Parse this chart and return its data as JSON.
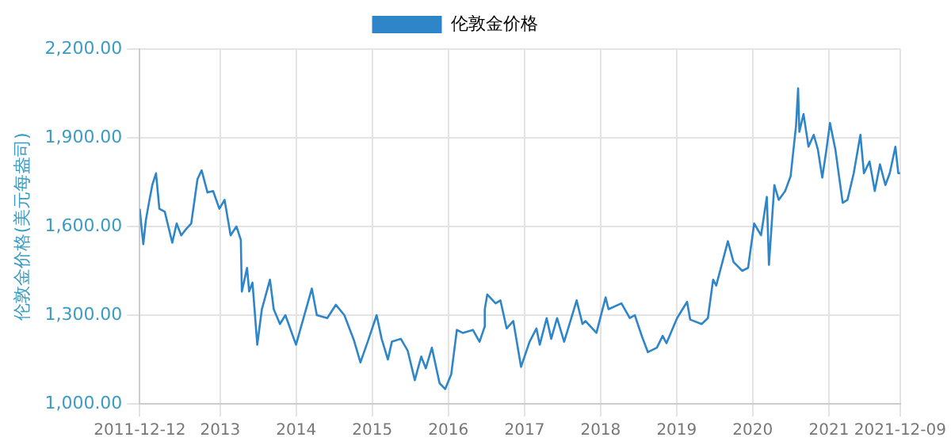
{
  "chart_data": {
    "type": "line",
    "ylabel": "伦敦金价格(美元每盎司)",
    "legend": "top",
    "grid": true,
    "marker": "none",
    "xlim": [
      "2011-12-12",
      "2021-12-09"
    ],
    "xticks": [
      {
        "value": "2011-12-12",
        "label": "2011-12-12"
      },
      {
        "value": "2013-01-01",
        "label": "2013"
      },
      {
        "value": "2014-01-01",
        "label": "2014"
      },
      {
        "value": "2015-01-01",
        "label": "2015"
      },
      {
        "value": "2016-01-01",
        "label": "2016"
      },
      {
        "value": "2017-01-01",
        "label": "2017"
      },
      {
        "value": "2018-01-01",
        "label": "2018"
      },
      {
        "value": "2019-01-01",
        "label": "2019"
      },
      {
        "value": "2020-01-01",
        "label": "2020"
      },
      {
        "value": "2021-01-01",
        "label": "2021"
      },
      {
        "value": "2021-12-09",
        "label": "2021-12-09"
      }
    ],
    "ylim": [
      1000,
      2200
    ],
    "yticks": [
      {
        "value": 1000,
        "label": "1,000.00"
      },
      {
        "value": 1300,
        "label": "1,300.00"
      },
      {
        "value": 1600,
        "label": "1,600.00"
      },
      {
        "value": 1900,
        "label": "1,900.00"
      },
      {
        "value": 2200,
        "label": "2,200.00"
      }
    ],
    "x": [
      "2011-12-12",
      "2011-12-20",
      "2011-12-29",
      "2012-01-10",
      "2012-01-25",
      "2012-02-10",
      "2012-02-28",
      "2012-03-15",
      "2012-04-10",
      "2012-05-16",
      "2012-06-06",
      "2012-06-28",
      "2012-07-20",
      "2012-08-15",
      "2012-09-14",
      "2012-10-04",
      "2012-11-01",
      "2012-11-28",
      "2012-12-28",
      "2013-01-22",
      "2013-02-20",
      "2013-03-20",
      "2013-04-10",
      "2013-04-15",
      "2013-05-10",
      "2013-05-20",
      "2013-06-05",
      "2013-06-28",
      "2013-07-20",
      "2013-08-28",
      "2013-09-15",
      "2013-10-15",
      "2013-11-10",
      "2013-12-31",
      "2014-01-20",
      "2014-03-17",
      "2014-04-10",
      "2014-05-30",
      "2014-07-10",
      "2014-08-20",
      "2014-10-05",
      "2014-11-05",
      "2014-12-10",
      "2015-01-22",
      "2015-02-15",
      "2015-03-17",
      "2015-04-05",
      "2015-05-18",
      "2015-06-20",
      "2015-07-24",
      "2015-08-24",
      "2015-09-15",
      "2015-10-14",
      "2015-11-20",
      "2015-12-17",
      "2016-01-15",
      "2016-02-11",
      "2016-03-10",
      "2016-04-28",
      "2016-05-30",
      "2016-06-23",
      "2016-06-24",
      "2016-07-06",
      "2016-08-15",
      "2016-09-07",
      "2016-10-07",
      "2016-11-08",
      "2016-12-15",
      "2017-01-25",
      "2017-02-27",
      "2017-03-15",
      "2017-04-17",
      "2017-05-09",
      "2017-06-06",
      "2017-07-10",
      "2017-09-08",
      "2017-10-06",
      "2017-10-20",
      "2017-12-12",
      "2018-01-25",
      "2018-02-08",
      "2018-04-11",
      "2018-05-21",
      "2018-06-14",
      "2018-07-20",
      "2018-08-16",
      "2018-09-28",
      "2018-10-26",
      "2018-11-13",
      "2019-01-03",
      "2019-02-20",
      "2019-03-07",
      "2019-05-01",
      "2019-05-31",
      "2019-06-25",
      "2019-07-10",
      "2019-09-04",
      "2019-10-01",
      "2019-11-12",
      "2019-12-10",
      "2020-01-08",
      "2020-02-10",
      "2020-03-09",
      "2020-03-19",
      "2020-04-14",
      "2020-05-05",
      "2020-06-05",
      "2020-07-01",
      "2020-07-27",
      "2020-08-06",
      "2020-08-12",
      "2020-09-01",
      "2020-09-25",
      "2020-10-20",
      "2020-11-09",
      "2020-11-30",
      "2020-12-20",
      "2021-01-06",
      "2021-02-01",
      "2021-03-08",
      "2021-03-31",
      "2021-04-30",
      "2021-06-01",
      "2021-06-18",
      "2021-07-15",
      "2021-08-09",
      "2021-09-03",
      "2021-09-29",
      "2021-10-20",
      "2021-11-16",
      "2021-11-30",
      "2021-12-09"
    ],
    "series": [
      {
        "name": "伦敦金价格",
        "color": "#2e86c9",
        "values": [
          1660,
          1600,
          1540,
          1620,
          1680,
          1740,
          1780,
          1660,
          1650,
          1545,
          1610,
          1570,
          1590,
          1610,
          1760,
          1790,
          1715,
          1720,
          1660,
          1690,
          1570,
          1600,
          1555,
          1380,
          1460,
          1380,
          1410,
          1200,
          1320,
          1420,
          1320,
          1270,
          1300,
          1200,
          1250,
          1390,
          1300,
          1290,
          1335,
          1300,
          1215,
          1140,
          1210,
          1300,
          1220,
          1150,
          1210,
          1220,
          1180,
          1080,
          1160,
          1120,
          1190,
          1070,
          1050,
          1100,
          1250,
          1240,
          1250,
          1210,
          1260,
          1320,
          1370,
          1340,
          1350,
          1255,
          1280,
          1125,
          1210,
          1255,
          1200,
          1290,
          1220,
          1290,
          1210,
          1350,
          1270,
          1280,
          1240,
          1360,
          1320,
          1340,
          1290,
          1300,
          1225,
          1175,
          1190,
          1230,
          1205,
          1290,
          1345,
          1285,
          1270,
          1290,
          1420,
          1400,
          1550,
          1480,
          1450,
          1460,
          1610,
          1570,
          1700,
          1470,
          1740,
          1690,
          1720,
          1770,
          1940,
          2067,
          1920,
          1980,
          1870,
          1910,
          1860,
          1765,
          1860,
          1950,
          1860,
          1680,
          1690,
          1780,
          1910,
          1780,
          1820,
          1720,
          1810,
          1740,
          1780,
          1870,
          1780,
          1780
        ]
      }
    ]
  }
}
